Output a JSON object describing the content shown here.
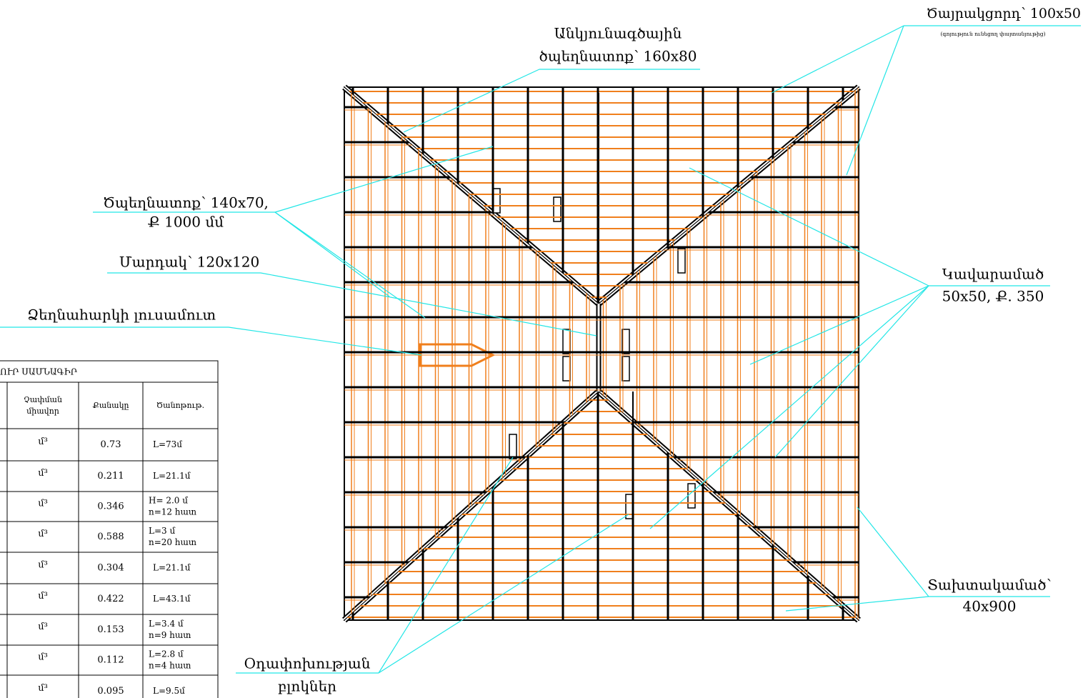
{
  "labels": {
    "ridge_board": {
      "text": "Ծայրակցորդ՝ 100x50",
      "note": "(գոյություն ունեցող փայտանյութից)"
    },
    "hip_rafter": {
      "lines": [
        "Անկյունագծային",
        "ծպեղնատոք՝ 160x80"
      ]
    },
    "rafter": {
      "lines": [
        "Ծպեղնատոք՝ 140x70,",
        "Ք 1000 մմ"
      ]
    },
    "post": {
      "text": "Մարդակ՝ 120x120"
    },
    "dormer": {
      "text": "Ձեղնահարկի լուսամուտ"
    },
    "battens": {
      "lines": [
        "Կավարամած",
        "50x50, Ք. 350"
      ]
    },
    "boarding": {
      "lines": [
        "Տախտակամած՝",
        "40x900"
      ]
    },
    "vents": {
      "lines": [
        "Օդափոխության",
        "բլոկներ"
      ]
    }
  },
  "table": {
    "title": "ՈՒՐ ՍԱՄՆԱԳԻՐ",
    "headers": [
      [
        "Չափման",
        "միավոր"
      ],
      [
        "Քանակը"
      ],
      [
        "Ծանոթութ."
      ]
    ],
    "rows": [
      [
        "մ³",
        0.73,
        [
          "L=73մ"
        ]
      ],
      [
        "մ³",
        0.211,
        [
          "L=21.1մ"
        ]
      ],
      [
        "մ³",
        0.346,
        [
          "H= 2.0 մ",
          "n=12 հատ"
        ]
      ],
      [
        "մ³",
        0.588,
        [
          "L=3 մ",
          "n=20 հատ"
        ]
      ],
      [
        "մ³",
        0.304,
        [
          "L=21.1մ"
        ]
      ],
      [
        "մ³",
        0.422,
        [
          "L=43.1մ"
        ]
      ],
      [
        "մ³",
        0.153,
        [
          "L=3.4 մ",
          "n=9 հատ"
        ]
      ],
      [
        "մ³",
        0.112,
        [
          "L=2.8 մ",
          "n=4 հատ"
        ]
      ],
      [
        "մ³",
        0.095,
        [
          "L=9.5մ"
        ]
      ]
    ]
  }
}
